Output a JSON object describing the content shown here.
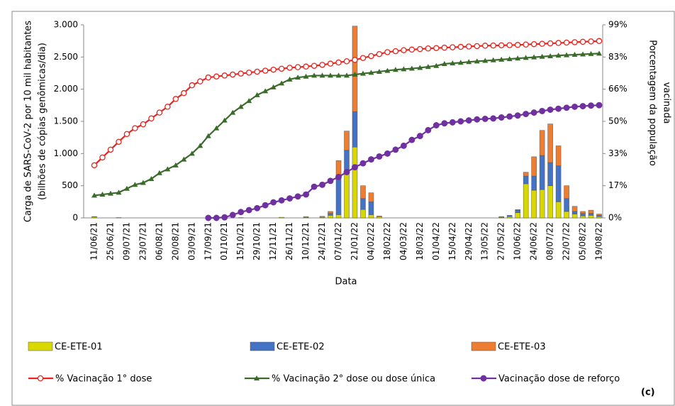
{
  "chart_data": {
    "type": "bar",
    "xlabel": "Data",
    "ylabel": [
      "Carga de SARS-CoV-2 por 10 mil habitantes",
      "(bilhões de cópias genômicas/dia)"
    ],
    "y2label": [
      "Porcentagem da população",
      "vacinada"
    ],
    "annotation": "(c)",
    "categories": [
      "11/06/21",
      null,
      "25/06/21",
      null,
      "09/07/21",
      null,
      "23/07/21",
      null,
      "06/08/21",
      null,
      "20/08/21",
      null,
      "03/09/21",
      null,
      "17/09/21",
      null,
      "01/10/21",
      null,
      "15/10/21",
      null,
      "29/10/21",
      null,
      "12/11/21",
      null,
      "26/11/21",
      null,
      "10/12/21",
      null,
      "24/12/21",
      null,
      "07/01/22",
      null,
      "21/01/22",
      null,
      "04/02/22",
      null,
      "18/02/22",
      null,
      "04/03/22",
      null,
      "18/03/22",
      null,
      "01/04/22",
      null,
      "15/04/22",
      null,
      "29/04/22",
      null,
      "13/05/22",
      null,
      "27/05/22",
      null,
      "10/06/22",
      null,
      "24/06/22",
      null,
      "08/07/22",
      null,
      "22/07/22",
      null,
      "05/08/22",
      null,
      "19/08/22"
    ],
    "ylim": [
      0,
      3000
    ],
    "yticks": [
      0,
      500,
      {
        "value": 1000,
        "label": "1.000"
      },
      {
        "value": 1500,
        "label": "1.500"
      },
      {
        "value": 2000,
        "label": "2.000"
      },
      {
        "value": 2500,
        "label": "2.500"
      },
      {
        "value": 3000,
        "label": "3.000"
      }
    ],
    "y2lim": [
      0,
      99
    ],
    "y2ticks": [
      {
        "value": 0,
        "label": "0%"
      },
      {
        "value": 16.5,
        "label": "17%"
      },
      {
        "value": 33,
        "label": "33%"
      },
      {
        "value": 49.5,
        "label": "50%"
      },
      {
        "value": 66,
        "label": "66%"
      },
      {
        "value": 82.5,
        "label": "83%"
      },
      {
        "value": 99,
        "label": "99%"
      }
    ],
    "series": [
      {
        "name": "CE-ETE-01",
        "kind": "bar",
        "color": "#d8d800",
        "values": [
          15,
          0,
          0,
          5,
          0,
          0,
          0,
          0,
          0,
          0,
          0,
          0,
          0,
          0,
          0,
          0,
          0,
          0,
          5,
          0,
          0,
          0,
          0,
          10,
          0,
          0,
          10,
          0,
          10,
          40,
          50,
          700,
          1100,
          130,
          50,
          20,
          0,
          0,
          0,
          0,
          0,
          0,
          0,
          0,
          0,
          0,
          0,
          0,
          0,
          0,
          10,
          20,
          80,
          530,
          430,
          440,
          500,
          250,
          100,
          60,
          30,
          40,
          20
        ]
      },
      {
        "name": "CE-ETE-02",
        "kind": "bar",
        "color": "#4472c4",
        "values": [
          0,
          0,
          0,
          0,
          0,
          0,
          0,
          0,
          0,
          0,
          0,
          0,
          0,
          0,
          0,
          0,
          0,
          0,
          0,
          0,
          0,
          0,
          0,
          0,
          0,
          0,
          0,
          0,
          0,
          30,
          550,
          350,
          550,
          170,
          200,
          0,
          0,
          0,
          0,
          0,
          0,
          0,
          0,
          0,
          0,
          0,
          0,
          0,
          0,
          0,
          10,
          20,
          40,
          120,
          220,
          530,
          360,
          560,
          200,
          40,
          40,
          30,
          20
        ]
      },
      {
        "name": "CE-ETE-03",
        "kind": "bar",
        "color": "#ed7d31",
        "values": [
          5,
          0,
          0,
          0,
          0,
          0,
          0,
          0,
          0,
          0,
          0,
          0,
          0,
          0,
          0,
          0,
          0,
          0,
          0,
          0,
          0,
          0,
          0,
          0,
          0,
          0,
          10,
          0,
          15,
          30,
          290,
          300,
          1330,
          200,
          140,
          10,
          0,
          0,
          0,
          0,
          0,
          0,
          0,
          0,
          0,
          0,
          0,
          0,
          0,
          0,
          0,
          0,
          10,
          60,
          300,
          390,
          600,
          310,
          200,
          80,
          30,
          50,
          20
        ]
      },
      {
        "name": "% Vacinação 1° dose",
        "kind": "line",
        "marker": "open-circle",
        "axis": "y2",
        "color": "#e8251f",
        "values": [
          27,
          31,
          35,
          39,
          43,
          46,
          48,
          51,
          54,
          57,
          61,
          64,
          68,
          70,
          72,
          72.5,
          73,
          73.5,
          74,
          74.5,
          75,
          75.5,
          76,
          76.5,
          77,
          77.3,
          77.6,
          78,
          78.5,
          79.1,
          79.7,
          80.3,
          81,
          82,
          83,
          84,
          85,
          85.5,
          86,
          86.3,
          86.6,
          86.9,
          87.1,
          87.3,
          87.5,
          87.7,
          87.9,
          88.1,
          88.3,
          88.4,
          88.5,
          88.6,
          88.7,
          88.9,
          89.1,
          89.3,
          89.5,
          89.7,
          89.9,
          90.1,
          90.3,
          90.5,
          90.7
        ]
      },
      {
        "name": "% Vacinação 2° dose ou dose única",
        "kind": "line",
        "marker": "triangle",
        "axis": "y2",
        "color": "#3a6b2a",
        "values": [
          11.5,
          12,
          12.5,
          13,
          15,
          17,
          18,
          20,
          23,
          25,
          27,
          30,
          33,
          37,
          42,
          46,
          50,
          54,
          57,
          60,
          63,
          65,
          67,
          69,
          71,
          72,
          72.5,
          73,
          73,
          73,
          73,
          73,
          73.5,
          74,
          74.5,
          75,
          75.5,
          76,
          76.3,
          76.6,
          77,
          77.5,
          78,
          79,
          79.3,
          79.6,
          80,
          80.3,
          80.6,
          80.9,
          81.2,
          81.5,
          81.8,
          82.1,
          82.4,
          82.7,
          83,
          83.3,
          83.5,
          83.7,
          83.9,
          84.1,
          84.3
        ]
      },
      {
        "name": "Vacinação dose de reforço",
        "kind": "line",
        "marker": "circle",
        "axis": "y2",
        "color": "#7030a0",
        "values": [
          null,
          null,
          null,
          null,
          null,
          null,
          null,
          null,
          null,
          null,
          null,
          null,
          null,
          null,
          0,
          0,
          0.3,
          1.5,
          3,
          4,
          5,
          6.5,
          8,
          9,
          10,
          11,
          12,
          16,
          17,
          19,
          21,
          23.5,
          26,
          28,
          30,
          31.5,
          33,
          35,
          37,
          40,
          42,
          45,
          47.5,
          48.5,
          49,
          49.5,
          50,
          50.5,
          50.8,
          51,
          51.5,
          52,
          52.5,
          53.3,
          54,
          54.8,
          55.5,
          56,
          56.5,
          57,
          57.3,
          57.6,
          57.8
        ]
      }
    ]
  }
}
